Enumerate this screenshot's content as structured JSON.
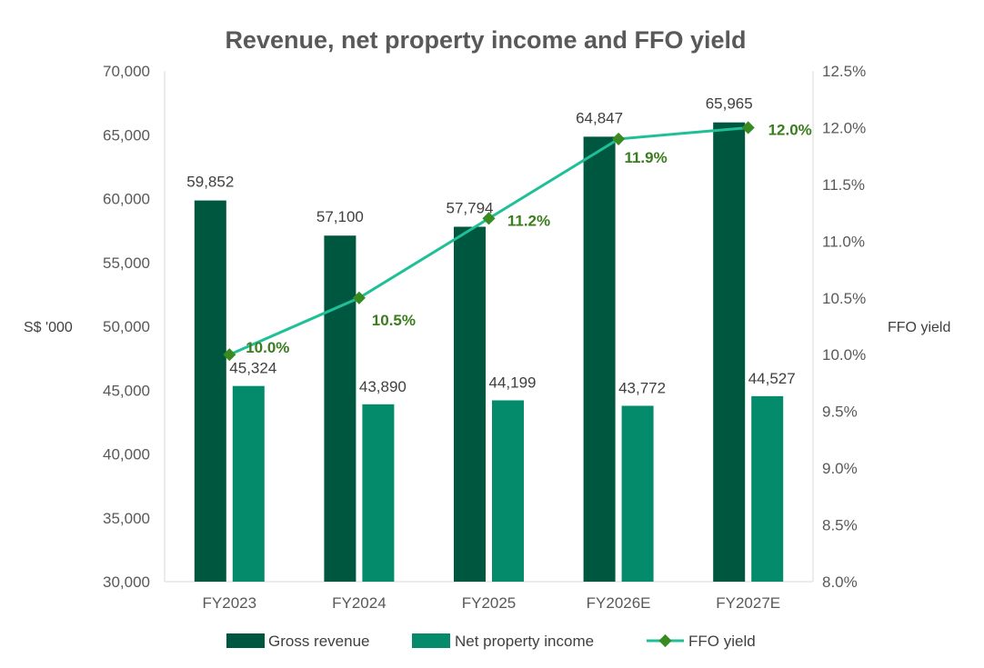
{
  "chart_data": {
    "type": "bar",
    "title": "Revenue, net property income and FFO yield",
    "categories": [
      "FY2023",
      "FY2024",
      "FY2025",
      "FY2026E",
      "FY2027E"
    ],
    "ylabel": "S$ '000",
    "y2label": "FFO yield",
    "ylim": [
      30000,
      70000
    ],
    "y2lim": [
      8.0,
      12.5
    ],
    "yticks": [
      "30,000",
      "35,000",
      "40,000",
      "45,000",
      "50,000",
      "55,000",
      "60,000",
      "65,000",
      "70,000"
    ],
    "y2ticks": [
      "8.0%",
      "8.5%",
      "9.0%",
      "9.5%",
      "10.0%",
      "10.5%",
      "11.0%",
      "11.5%",
      "12.0%",
      "12.5%"
    ],
    "series": [
      {
        "name": "Gross revenue",
        "kind": "bar",
        "color": "#00573f",
        "values": [
          59852,
          57100,
          57794,
          64847,
          65965
        ],
        "labels": [
          "59,852",
          "57,100",
          "57,794",
          "64,847",
          "65,965"
        ]
      },
      {
        "name": "Net property income",
        "kind": "bar",
        "color": "#048b6b",
        "values": [
          45324,
          43890,
          44199,
          43772,
          44527
        ],
        "labels": [
          "45,324",
          "43,890",
          "44,199",
          "43,772",
          "44,527"
        ]
      },
      {
        "name": "FFO yield",
        "kind": "line",
        "axis": "secondary",
        "color": "#1fbf97",
        "marker_color": "#3a8a22",
        "label_color": "#3a7d1e",
        "values": [
          10.0,
          10.5,
          11.2,
          11.9,
          12.0
        ],
        "labels": [
          "10.0%",
          "10.5%",
          "11.2%",
          "11.9%",
          "12.0%"
        ]
      }
    ],
    "legend": "bottom",
    "grid": false
  }
}
